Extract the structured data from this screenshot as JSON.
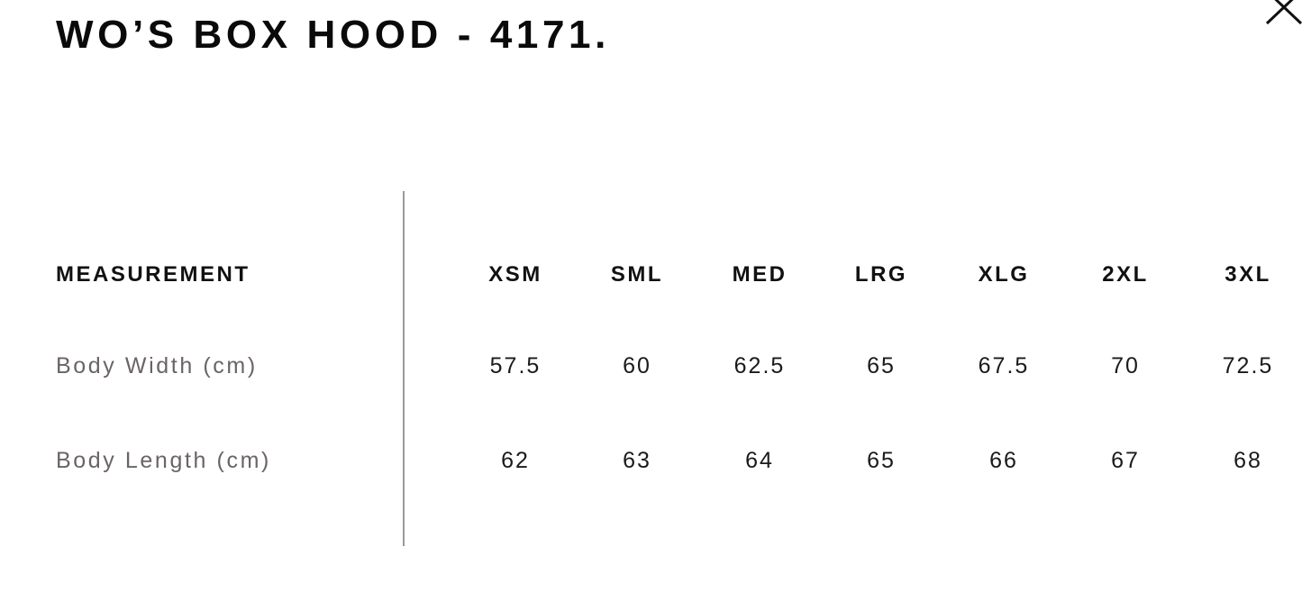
{
  "title": "WO’S BOX HOOD - 4171.",
  "close_icon": "close-x-icon",
  "table": {
    "header_label": "MEASUREMENT",
    "sizes": [
      "XSM",
      "SML",
      "MED",
      "LRG",
      "XLG",
      "2XL",
      "3XL"
    ],
    "rows": [
      {
        "label": "Body Width (cm)",
        "values": [
          "57.5",
          "60",
          "62.5",
          "65",
          "67.5",
          "70",
          "72.5"
        ]
      },
      {
        "label": "Body Length (cm)",
        "values": [
          "62",
          "63",
          "64",
          "65",
          "66",
          "67",
          "68"
        ]
      }
    ]
  }
}
